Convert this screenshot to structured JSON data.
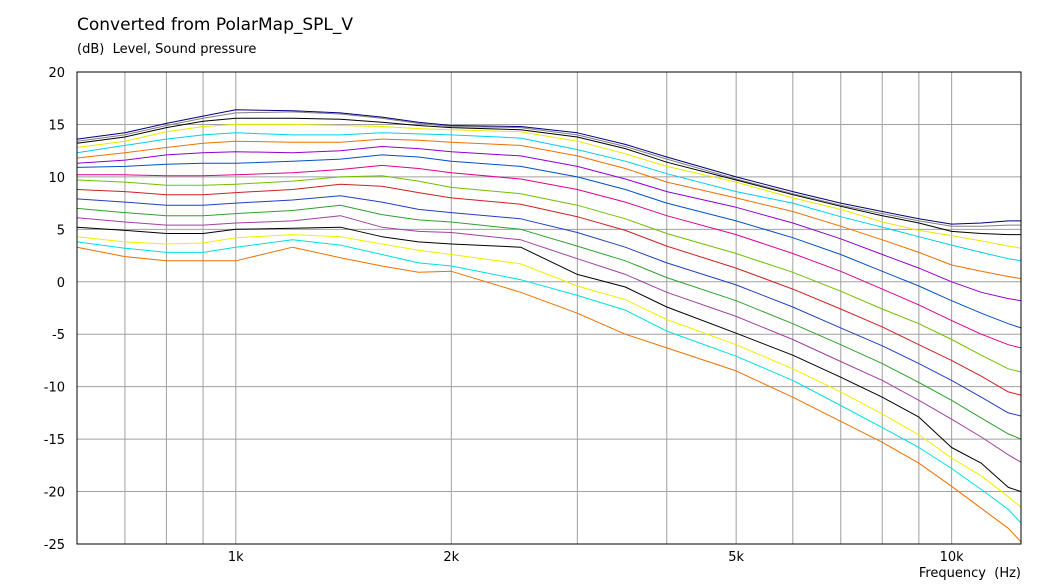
{
  "chart_data": {
    "type": "line",
    "title": "Converted from PolarMap_SPL_V",
    "ylabel": "(dB)  Level, Sound pressure",
    "xlabel": "Frequency  (Hz)",
    "xscale": "log",
    "xlim": [
      600,
      12500
    ],
    "ylim": [
      -25,
      20
    ],
    "x_ticks": [
      {
        "value": 1000,
        "label": "1k"
      },
      {
        "value": 2000,
        "label": "2k"
      },
      {
        "value": 5000,
        "label": "5k"
      },
      {
        "value": 10000,
        "label": "10k"
      }
    ],
    "y_ticks": [
      20,
      15,
      10,
      5,
      0,
      -5,
      -10,
      -15,
      -20,
      -25
    ],
    "grid": true,
    "legend": "none",
    "x": [
      600,
      700,
      800,
      900,
      1000,
      1200,
      1400,
      1600,
      1800,
      2000,
      2500,
      3000,
      3500,
      4000,
      5000,
      6000,
      7000,
      8000,
      9000,
      10000,
      11000,
      12000,
      12500
    ],
    "series": [
      {
        "color": "#000080",
        "values": [
          13.6,
          14.2,
          15.1,
          15.8,
          16.4,
          16.3,
          16.1,
          15.7,
          15.2,
          14.9,
          14.8,
          14.2,
          13.1,
          11.9,
          10.0,
          8.6,
          7.5,
          6.7,
          6.0,
          5.5,
          5.6,
          5.8,
          5.8
        ]
      },
      {
        "color": "#808080",
        "values": [
          13.4,
          14.0,
          14.9,
          15.6,
          16.1,
          16.2,
          16.0,
          15.6,
          15.1,
          14.8,
          14.7,
          14.0,
          12.9,
          11.7,
          9.8,
          8.4,
          7.3,
          6.5,
          5.8,
          5.3,
          5.3,
          5.4,
          5.4
        ]
      },
      {
        "color": "#000000",
        "values": [
          13.2,
          13.8,
          14.7,
          15.3,
          15.6,
          15.6,
          15.5,
          15.2,
          14.9,
          14.7,
          14.5,
          13.8,
          12.7,
          11.4,
          9.7,
          8.3,
          7.2,
          6.3,
          5.6,
          4.8,
          4.6,
          4.5,
          4.5
        ]
      },
      {
        "color": "#e8e800",
        "values": [
          12.8,
          13.4,
          14.3,
          14.8,
          15.0,
          15.0,
          14.9,
          14.8,
          14.6,
          14.5,
          14.3,
          13.4,
          12.2,
          11.0,
          9.5,
          8.0,
          6.9,
          5.7,
          4.9,
          4.4,
          3.9,
          3.4,
          3.2
        ]
      },
      {
        "color": "#00d0f0",
        "values": [
          12.3,
          13.0,
          13.6,
          14.0,
          14.2,
          14.0,
          14.0,
          14.2,
          14.1,
          14.0,
          13.7,
          12.6,
          11.5,
          10.3,
          8.6,
          7.5,
          6.2,
          5.2,
          4.3,
          3.5,
          2.8,
          2.2,
          2.0
        ]
      },
      {
        "color": "#f07000",
        "values": [
          11.8,
          12.3,
          12.8,
          13.2,
          13.4,
          13.3,
          13.3,
          13.6,
          13.5,
          13.3,
          13.0,
          12.0,
          10.8,
          9.5,
          8.0,
          6.7,
          5.3,
          4.0,
          2.8,
          1.6,
          1.0,
          0.5,
          0.3
        ]
      },
      {
        "color": "#9000d0",
        "values": [
          11.3,
          11.6,
          12.1,
          12.3,
          12.4,
          12.3,
          12.5,
          12.9,
          12.7,
          12.4,
          12.0,
          11.0,
          9.8,
          8.6,
          7.1,
          5.6,
          4.1,
          2.6,
          1.3,
          0.0,
          -1.0,
          -1.6,
          -1.8
        ]
      },
      {
        "color": "#0050c8",
        "values": [
          10.9,
          11.0,
          11.2,
          11.3,
          11.3,
          11.5,
          11.7,
          12.1,
          11.9,
          11.5,
          11.0,
          10.0,
          8.8,
          7.5,
          5.8,
          4.2,
          2.6,
          1.0,
          -0.4,
          -1.8,
          -3.0,
          -4.0,
          -4.4
        ]
      },
      {
        "color": "#e00090",
        "values": [
          10.2,
          10.2,
          10.1,
          10.1,
          10.2,
          10.4,
          10.7,
          11.1,
          10.8,
          10.4,
          9.8,
          8.8,
          7.6,
          6.3,
          4.5,
          2.7,
          1.0,
          -0.7,
          -2.2,
          -3.7,
          -5.0,
          -6.0,
          -6.3
        ]
      },
      {
        "color": "#70c000",
        "values": [
          9.7,
          9.5,
          9.2,
          9.2,
          9.3,
          9.6,
          10.0,
          10.1,
          9.6,
          9.0,
          8.4,
          7.3,
          6.0,
          4.6,
          2.7,
          0.9,
          -0.9,
          -2.6,
          -4.0,
          -5.5,
          -7.0,
          -8.3,
          -8.6
        ]
      },
      {
        "color": "#d02020",
        "values": [
          8.8,
          8.6,
          8.3,
          8.3,
          8.5,
          8.8,
          9.3,
          9.1,
          8.5,
          8.0,
          7.4,
          6.2,
          4.9,
          3.4,
          1.3,
          -0.7,
          -2.6,
          -4.3,
          -6.0,
          -7.5,
          -9.0,
          -10.5,
          -10.8
        ]
      },
      {
        "color": "#2040c0",
        "values": [
          7.9,
          7.6,
          7.3,
          7.3,
          7.5,
          7.8,
          8.2,
          7.6,
          6.9,
          6.6,
          6.0,
          4.7,
          3.3,
          1.8,
          -0.3,
          -2.4,
          -4.4,
          -6.1,
          -7.8,
          -9.4,
          -11.0,
          -12.5,
          -12.8
        ]
      },
      {
        "color": "#30a030",
        "values": [
          7.0,
          6.6,
          6.3,
          6.3,
          6.5,
          6.8,
          7.3,
          6.4,
          5.9,
          5.7,
          5.0,
          3.4,
          2.0,
          0.4,
          -1.8,
          -4.0,
          -6.0,
          -7.8,
          -9.6,
          -11.3,
          -13.0,
          -14.5,
          -15.0
        ]
      },
      {
        "color": "#a040a0",
        "values": [
          6.1,
          5.7,
          5.4,
          5.4,
          5.6,
          5.8,
          6.3,
          5.2,
          4.8,
          4.7,
          4.0,
          2.2,
          0.7,
          -1.0,
          -3.3,
          -5.5,
          -7.6,
          -9.4,
          -11.3,
          -13.1,
          -14.8,
          -16.5,
          -17.2
        ]
      },
      {
        "color": "#000000",
        "values": [
          5.2,
          4.9,
          4.6,
          4.6,
          5.0,
          5.1,
          5.2,
          4.3,
          3.8,
          3.6,
          3.3,
          0.7,
          -0.5,
          -2.4,
          -4.9,
          -7.0,
          -9.1,
          -11.0,
          -12.9,
          -15.8,
          -17.3,
          -19.6,
          -20.0
        ]
      },
      {
        "color": "#f0f000",
        "values": [
          4.3,
          3.8,
          3.6,
          3.7,
          4.2,
          4.5,
          4.3,
          3.6,
          3.0,
          2.6,
          1.7,
          -0.4,
          -1.7,
          -3.6,
          -6.0,
          -8.3,
          -10.5,
          -12.6,
          -14.6,
          -16.8,
          -18.5,
          -20.5,
          -21.5
        ]
      },
      {
        "color": "#00e0e0",
        "values": [
          3.8,
          3.2,
          2.8,
          2.8,
          3.3,
          4.0,
          3.5,
          2.6,
          1.8,
          1.5,
          0.2,
          -1.3,
          -2.7,
          -4.7,
          -7.1,
          -9.4,
          -11.8,
          -13.9,
          -15.8,
          -17.8,
          -19.8,
          -21.7,
          -23.0
        ]
      },
      {
        "color": "#f07000",
        "values": [
          3.3,
          2.4,
          2.0,
          2.0,
          2.0,
          3.3,
          2.3,
          1.5,
          0.9,
          1.0,
          -1.0,
          -3.0,
          -5.0,
          -6.3,
          -8.5,
          -11.0,
          -13.3,
          -15.3,
          -17.3,
          -19.5,
          -21.6,
          -23.5,
          -24.8
        ]
      }
    ]
  }
}
